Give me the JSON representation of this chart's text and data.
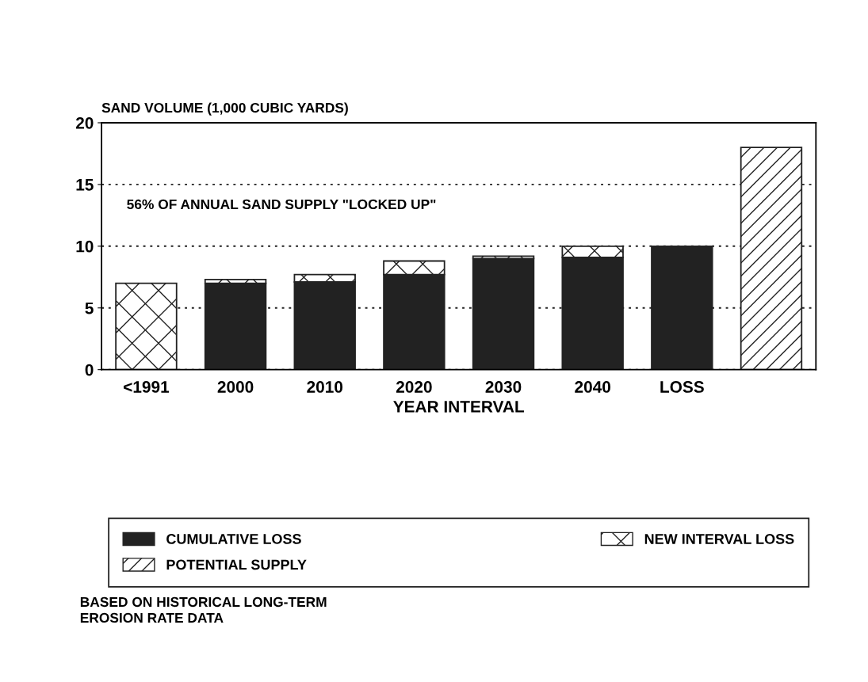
{
  "chart_data": {
    "type": "bar",
    "stacked": true,
    "ylabel": "SAND VOLUME (1,000 CUBIC YARDS)",
    "xlabel": "YEAR INTERVAL",
    "categories": [
      "<1991",
      "2000",
      "2010",
      "2020",
      "2030",
      "2040",
      "LOSS",
      null
    ],
    "series": [
      {
        "name": "CUMULATIVE LOSS",
        "color": "#222222",
        "values": [
          null,
          7.0,
          7.1,
          7.7,
          9.0,
          9.1,
          10.0,
          null
        ]
      },
      {
        "name": "NEW INTERVAL LOSS",
        "color": "#222222",
        "values": [
          7.0,
          0.3,
          0.6,
          1.1,
          0.2,
          0.9,
          null,
          null
        ]
      },
      {
        "name": "POTENTIAL SUPPLY",
        "color": "#222222",
        "values": [
          null,
          null,
          null,
          null,
          null,
          null,
          null,
          18.0
        ]
      }
    ],
    "ylim": [
      0,
      20
    ],
    "yticks": [
      0,
      5,
      10,
      15,
      20
    ],
    "grid": "y",
    "legend": "bottom",
    "annotations": [
      "56% OF ANNUAL SAND SUPPLY \"LOCKED UP\"",
      "BASED ON HISTORICAL LONG-TERM EROSION RATE DATA"
    ]
  }
}
